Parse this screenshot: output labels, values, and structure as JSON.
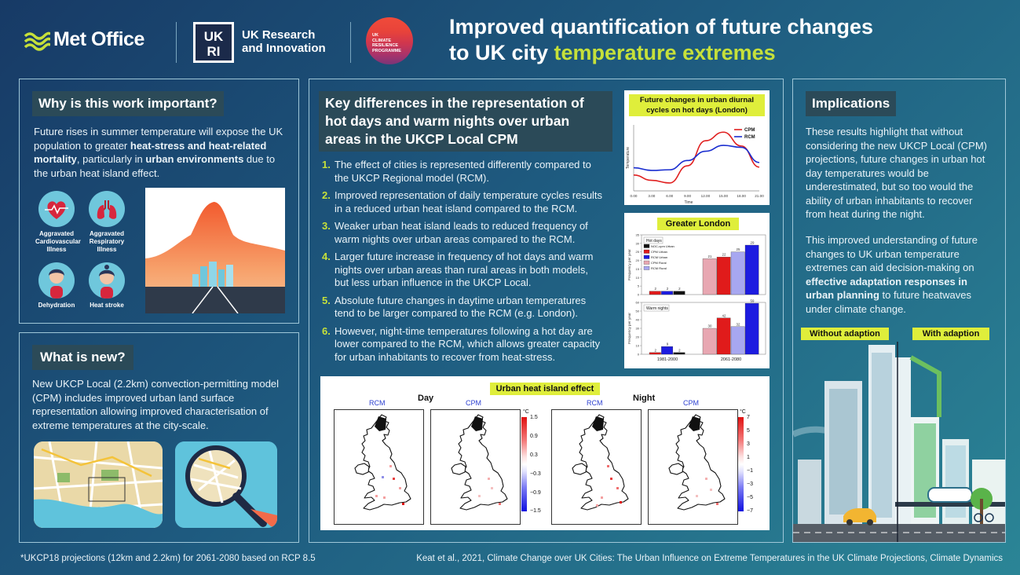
{
  "header": {
    "metoffice": "Met Office",
    "ukri_line1": "UK Research",
    "ukri_line2": "and Innovation",
    "ukcr_lines": [
      "UK",
      "CLIMATE",
      "RESILIENCE",
      "PROGRAMME"
    ],
    "title_line1": "Improved quantification of future changes",
    "title_line2_a": "to UK city ",
    "title_line2_b": "temperature extremes"
  },
  "why": {
    "heading": "Why is this work important?",
    "text_1": "Future rises in summer temperature will expose the UK population to greater ",
    "bold_1": "heat-stress and heat-related mortality",
    "text_2": ", particularly in ",
    "bold_2": "urban environments",
    "text_3": " due to the urban heat island effect.",
    "icons": [
      {
        "label": "Aggravated Cardiovascular Illness",
        "icon": "heart-icon"
      },
      {
        "label": "Aggravated Respiratory Illness",
        "icon": "lungs-icon"
      },
      {
        "label": "Dehydration",
        "icon": "dehydration-person-icon"
      },
      {
        "label": "Heat stroke",
        "icon": "heat-stroke-person-icon"
      }
    ]
  },
  "new": {
    "heading": "What is new?",
    "text": "New UKCP Local (2.2km) convection-permitting model (CPM) includes improved urban land surface representation allowing improved characterisation of extreme temperatures at the city-scale."
  },
  "key": {
    "heading": "Key differences in the representation of hot days and warm nights over urban areas in the UKCP Local CPM",
    "items": [
      {
        "n": "1.",
        "text": "The effect of cities is represented differently compared to the UKCP Regional model (RCM)."
      },
      {
        "n": "2.",
        "text": "Improved representation of daily temperature cycles results in a reduced urban heat island compared to the RCM."
      },
      {
        "n": "3.",
        "text": "Weaker urban heat island leads to reduced frequency of warm nights over urban areas compared to the RCM."
      },
      {
        "n": "4.",
        "text": "Larger future increase in frequency of hot days and warm nights over urban areas than rural areas in both models, but less urban influence in the UKCP Local."
      },
      {
        "n": "5.",
        "text": "Absolute future changes in daytime urban temperatures tend to be larger compared to the RCM (e.g. London)."
      },
      {
        "n": "6.",
        "text": "However, night-time temperatures following a hot day are lower compared to the RCM, which allows greater capacity for urban inhabitants to recover from heat-stress."
      }
    ]
  },
  "implications": {
    "heading": "Implications",
    "p1": "These results highlight that without considering the new UKCP Local (CPM) projections, future changes in urban hot day temperatures would be underestimated, but so too would the ability of urban inhabitants to recover from heat during the night.",
    "p2_a": "This improved understanding of future changes to UK urban temperature extremes can aid decision-making on ",
    "p2_b": "effective adaptation responses in urban planning",
    "p2_c": " to future heatwaves under climate change.",
    "without": "Without adaption",
    "with": "With adaption"
  },
  "footer": {
    "left": "*UKCP18 projections (12km and 2.2km) for 2061-2080 based on RCP 8.5",
    "right": "Keat et al., 2021, Climate Change over UK Cities: The Urban Influence on Extreme Temperatures in the UK Climate Projections, Climate Dynamics"
  },
  "uhi": {
    "title": "Urban heat island effect",
    "day": "Day",
    "night": "Night",
    "labels": [
      "RCM",
      "CPM",
      "RCM",
      "CPM"
    ],
    "unit": "°C",
    "day_ticks": [
      "1.5",
      "0.9",
      "0.3",
      "−0.3",
      "−0.9",
      "−1.5"
    ],
    "night_ticks": [
      "7",
      "5",
      "3",
      "1",
      "−1",
      "−3",
      "−5",
      "−7"
    ]
  },
  "chart_data": [
    {
      "type": "line",
      "title": "Future changes in urban diurnal cycles on hot days (London)",
      "xlabel": "Time",
      "ylabel": "Temperature",
      "x": [
        "0.00",
        "3.00",
        "6.00",
        "9.00",
        "12.00",
        "15.00",
        "18.00",
        "21.00"
      ],
      "series": [
        {
          "name": "CPM",
          "color": "#e02020",
          "values": [
            2.4,
            1.6,
            1.2,
            3.8,
            7.6,
            8.9,
            6.8,
            3.6
          ]
        },
        {
          "name": "RCM",
          "color": "#1a2ed0",
          "values": [
            3.5,
            3.1,
            3.2,
            4.6,
            6.0,
            6.9,
            6.6,
            4.3
          ]
        }
      ],
      "legend": "top-right"
    },
    {
      "type": "bar",
      "title": "Greater London",
      "ylabel": "Frequency per year",
      "categories": [
        "1981-2000",
        "2061-2080"
      ],
      "legend": "top-left",
      "legend_entries": [
        "NOC-cpm Urban",
        "CPM Urban",
        "RCM Urban",
        "CPM Rural",
        "RCM Rural"
      ],
      "panels": [
        {
          "name": "Hot days",
          "ylim": [
            0,
            35
          ],
          "yticks": [
            "0",
            "5",
            "10",
            "15",
            "20",
            "25",
            "30",
            "35"
          ],
          "series": [
            {
              "color": "#e8a7b2",
              "values": [
                null,
                21
              ]
            },
            {
              "color": "#e01b1b",
              "values": [
                2,
                22
              ]
            },
            {
              "color": "#a7a7f0",
              "values": [
                null,
                25
              ]
            },
            {
              "color": "#1d1ce0",
              "values": [
                2,
                29
              ]
            },
            {
              "color": "#111111",
              "values": [
                2,
                null
              ]
            }
          ]
        },
        {
          "name": "Warm nights",
          "ylim": [
            0,
            60
          ],
          "yticks": [
            "0",
            "10",
            "20",
            "30",
            "40",
            "50",
            "60"
          ],
          "series": [
            {
              "color": "#e8a7b2",
              "values": [
                null,
                30
              ]
            },
            {
              "color": "#e01b1b",
              "values": [
                2,
                42
              ]
            },
            {
              "color": "#a7a7f0",
              "values": [
                null,
                32
              ]
            },
            {
              "color": "#1d1ce0",
              "values": [
                9,
                59
              ]
            },
            {
              "color": "#111111",
              "values": [
                2,
                null
              ]
            }
          ]
        }
      ]
    }
  ]
}
